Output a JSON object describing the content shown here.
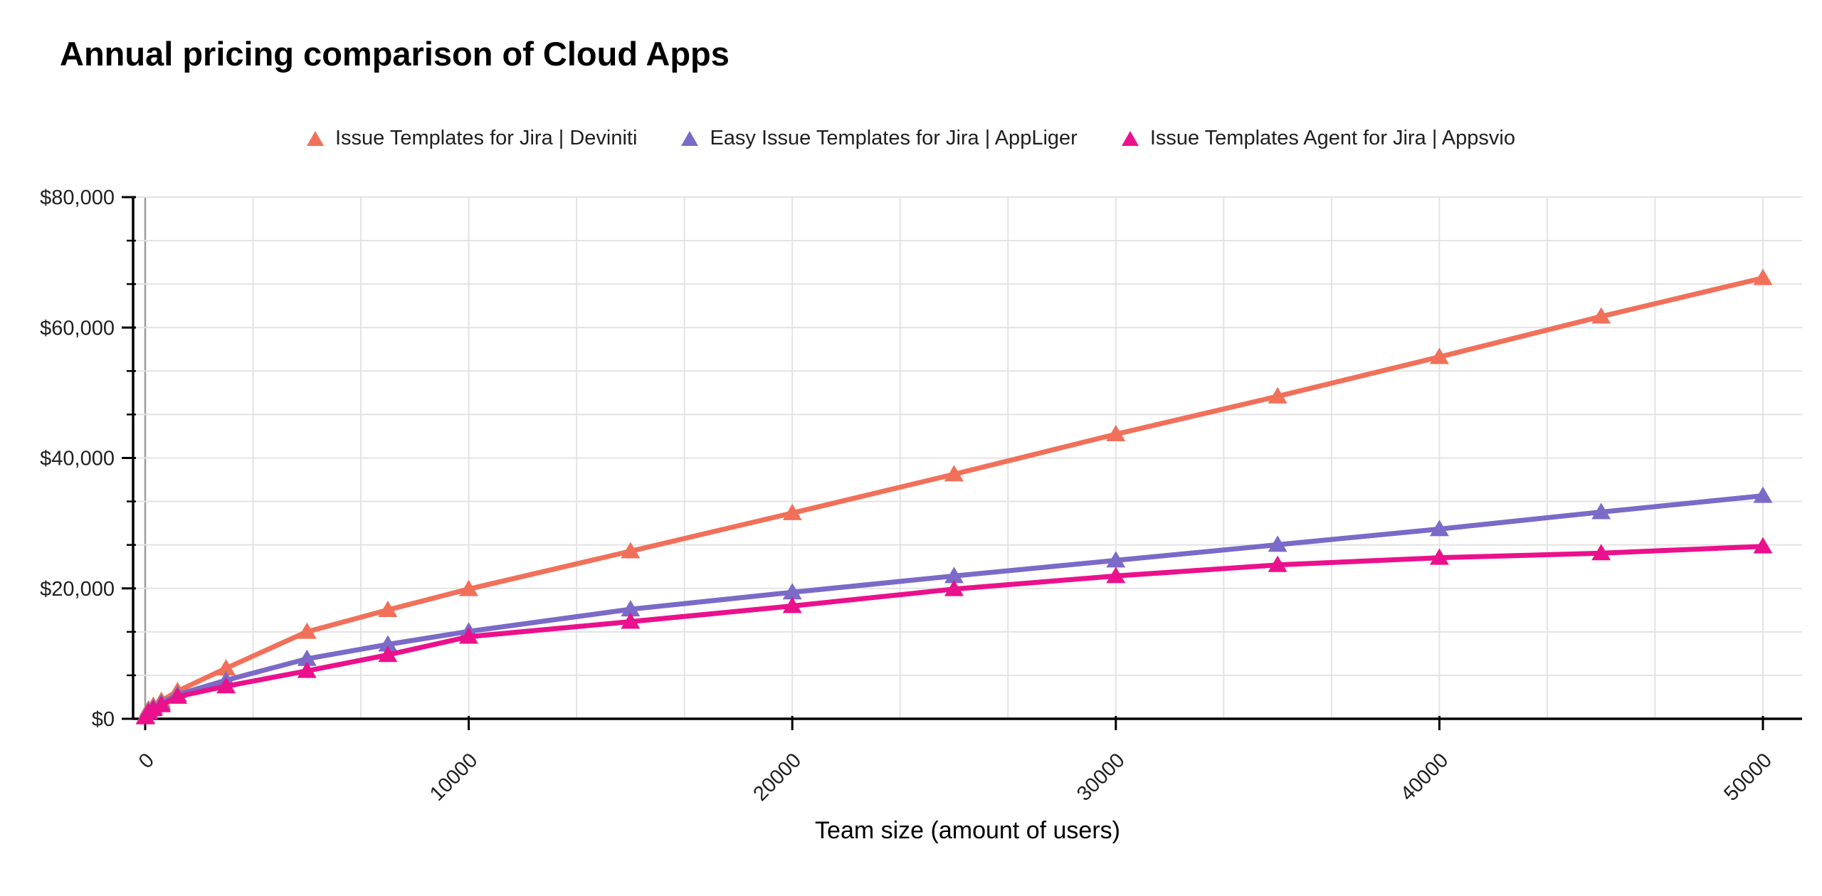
{
  "chart_data": {
    "type": "line",
    "title": "Annual pricing comparison of Cloud Apps",
    "xlabel": "Team size (amount of users)",
    "ylabel": "",
    "marker": "triangle",
    "legend_position": "top",
    "grid": true,
    "x": [
      10,
      100,
      250,
      500,
      1000,
      2500,
      5000,
      7500,
      10000,
      15000,
      20000,
      25000,
      30000,
      35000,
      40000,
      45000,
      50000
    ],
    "series": [
      {
        "name": "Issue Templates for Jira | Deviniti",
        "color": "#F1705A",
        "values": [
          400,
          1450,
          2000,
          2750,
          4250,
          7750,
          13350,
          16700,
          19900,
          25700,
          31550,
          37500,
          43650,
          49450,
          55500,
          61700,
          67600
        ]
      },
      {
        "name": "Easy Issue Templates for Jira | AppLiger",
        "color": "#7B6AC7",
        "values": [
          300,
          1200,
          1700,
          2400,
          3700,
          5900,
          9200,
          11400,
          13400,
          16800,
          19400,
          21900,
          24300,
          26700,
          29100,
          31700,
          34200
        ]
      },
      {
        "name": "Issue Templates Agent for Jira | Appsvio",
        "color": "#EB108C",
        "values": [
          250,
          1000,
          1500,
          2100,
          3400,
          5000,
          7350,
          9800,
          12600,
          14900,
          17300,
          19900,
          21900,
          23600,
          24700,
          25400,
          26450
        ]
      }
    ],
    "x_axis": {
      "min": 0,
      "max": 50000,
      "major_tick_step": 10000,
      "minor_divisions": 3,
      "tick_labels": [
        "0",
        "10000",
        "20000",
        "30000",
        "40000",
        "50000"
      ],
      "label_rotation_deg": -45
    },
    "y_axis": {
      "min": 0,
      "max": 80000,
      "major_tick_step": 20000,
      "minor_divisions": 3,
      "tick_labels": [
        "$0",
        "$20,000",
        "$40,000",
        "$60,000",
        "$80,000"
      ]
    },
    "colors": {
      "gridline": "#E3E3E3",
      "zero_gridline": "#9B9B9B",
      "axis": "#000000",
      "tick_label": "#1f1f1f"
    }
  }
}
